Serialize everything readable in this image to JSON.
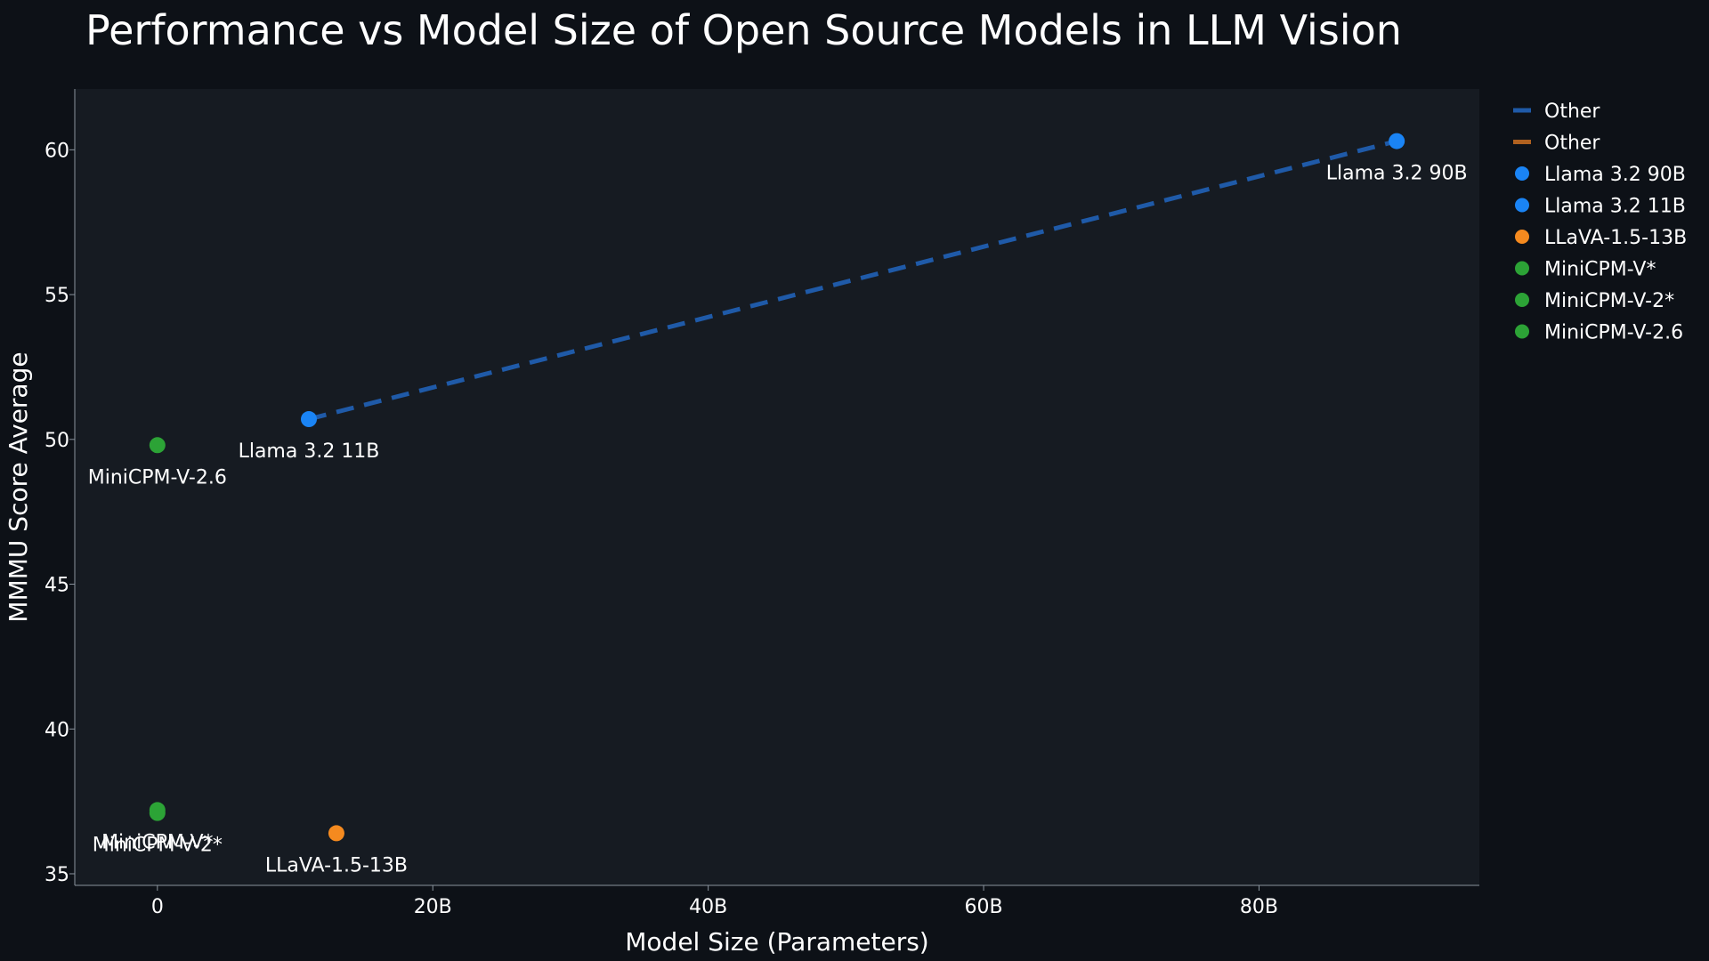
{
  "chart_data": {
    "type": "scatter",
    "title": "Performance vs Model Size of Open Source Models in LLM Vision",
    "xlabel": "Model Size (Parameters)",
    "ylabel": "MMMU Score Average",
    "xlim": [
      -6,
      96
    ],
    "ylim": [
      34.6,
      62.1
    ],
    "x_ticks": [
      {
        "value": 0,
        "label": "0"
      },
      {
        "value": 20,
        "label": "20B"
      },
      {
        "value": 40,
        "label": "40B"
      },
      {
        "value": 60,
        "label": "60B"
      },
      {
        "value": 80,
        "label": "80B"
      }
    ],
    "y_ticks": [
      {
        "value": 35,
        "label": "35"
      },
      {
        "value": 40,
        "label": "40"
      },
      {
        "value": 45,
        "label": "45"
      },
      {
        "value": 50,
        "label": "50"
      },
      {
        "value": 55,
        "label": "55"
      },
      {
        "value": 60,
        "label": "60"
      }
    ],
    "series": [
      {
        "name": "Llama 3.2 90B",
        "x": 90,
        "y": 60.3,
        "color": "#1a84f5",
        "label_dx": 0,
        "label_dy": 1
      },
      {
        "name": "Llama 3.2 11B",
        "x": 11,
        "y": 50.7,
        "color": "#1a84f5",
        "label_dx": 0,
        "label_dy": 1
      },
      {
        "name": "LLaVA-1.5-13B",
        "x": 13,
        "y": 36.4,
        "color": "#f58a1f",
        "label_dx": 0,
        "label_dy": 1
      },
      {
        "name": "MiniCPM-V*",
        "x": 0,
        "y": 37.2,
        "color": "#2ca336",
        "label_dx": 0,
        "label_dy": 1
      },
      {
        "name": "MiniCPM-V-2*",
        "x": 0,
        "y": 37.1,
        "color": "#2ca336",
        "label_dx": 0,
        "label_dy": 1
      },
      {
        "name": "MiniCPM-V-2.6",
        "x": 0,
        "y": 49.8,
        "color": "#2ca336",
        "label_dx": 0,
        "label_dy": 1
      }
    ],
    "trend_lines": [
      {
        "name": "Other",
        "color": "#1f5aa8",
        "points": [
          [
            11,
            50.7
          ],
          [
            90,
            60.3
          ]
        ]
      },
      {
        "name": "Other",
        "color": "#b0611f",
        "points": []
      }
    ],
    "legend": {
      "placement": "right",
      "entries": [
        {
          "label": "Other",
          "kind": "line",
          "color": "#1f5aa8"
        },
        {
          "label": "Other",
          "kind": "line",
          "color": "#b0611f"
        },
        {
          "label": "Llama 3.2 90B",
          "kind": "marker",
          "color": "#1a84f5"
        },
        {
          "label": "Llama 3.2 11B",
          "kind": "marker",
          "color": "#1a84f5"
        },
        {
          "label": "LLaVA-1.5-13B",
          "kind": "marker",
          "color": "#f58a1f"
        },
        {
          "label": "MiniCPM-V*",
          "kind": "marker",
          "color": "#2ca336"
        },
        {
          "label": "MiniCPM-V-2*",
          "kind": "marker",
          "color": "#2ca336"
        },
        {
          "label": "MiniCPM-V-2.6",
          "kind": "marker",
          "color": "#2ca336"
        }
      ]
    },
    "colors": {
      "page_background": "#0d1117",
      "plot_background": "#161b22",
      "axis_line": "#8b949e",
      "text": "#ffffff"
    }
  }
}
